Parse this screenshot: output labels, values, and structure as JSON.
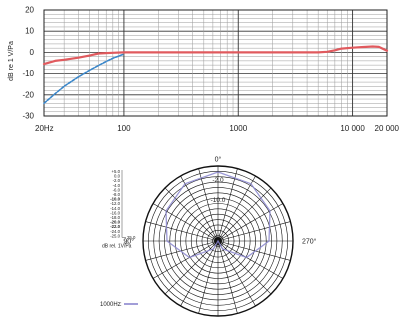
{
  "chart_data": [
    {
      "type": "line",
      "title": "",
      "xlabel": "",
      "ylabel": "dB re 1 V/Pa",
      "xscale": "log",
      "xlim": [
        20,
        20000
      ],
      "ylim": [
        -30,
        20
      ],
      "grid": true,
      "legend": "none",
      "x_ticks": [
        {
          "value": 20,
          "label": "20Hz"
        },
        {
          "value": 100,
          "label": "100"
        },
        {
          "value": 1000,
          "label": "1000"
        },
        {
          "value": 10000,
          "label": "10 000"
        },
        {
          "value": 20000,
          "label": "20 000"
        }
      ],
      "y_ticks": [
        20,
        10,
        0,
        -10,
        -20,
        -30
      ],
      "series": [
        {
          "color": "#e05a5e",
          "style": "solid",
          "x": [
            20,
            25,
            30,
            40,
            50,
            60,
            80,
            100,
            150,
            200,
            500,
            1000,
            2000,
            3000,
            4000,
            5000,
            6000,
            7000,
            8000,
            10000,
            12000,
            15000,
            17000,
            20000
          ],
          "y": [
            -5.5,
            -4,
            -3.5,
            -2.5,
            -1.5,
            -0.5,
            -0.2,
            0,
            0,
            0,
            0,
            0,
            0,
            0,
            0,
            0,
            0.3,
            1,
            1.8,
            2.2,
            2.5,
            2.8,
            2.6,
            0.8
          ]
        },
        {
          "color": "#3a86c9",
          "style": "dashed",
          "x": [
            20,
            25,
            30,
            40,
            50,
            60,
            70,
            80,
            100
          ],
          "y": [
            -24,
            -19.5,
            -16,
            -11.5,
            -8.5,
            -6.2,
            -4.3,
            -2.8,
            -0.8
          ]
        }
      ]
    },
    {
      "type": "polar",
      "angle_labels": [
        {
          "deg": 0,
          "label": "0°"
        },
        {
          "deg": 90,
          "label": "270°"
        },
        {
          "deg": 180,
          "label": "180°"
        },
        {
          "deg": 270,
          "label": "90°"
        }
      ],
      "ring_labels": [
        "-2.0",
        "-10.0"
      ],
      "scale_labels": [
        "+5.0",
        "0.0",
        "-2.0",
        "-4.0",
        "-6.0",
        "-8.0",
        "-10.0",
        "-12.0",
        "-14.0",
        "-16.0",
        "-18.0",
        "-20.0",
        "-22.0",
        "-24.0",
        "-25.0"
      ],
      "scale_end_label": "25.0",
      "scale_unit": "dB rel. 1V/Pa",
      "series": [
        {
          "name": "1000Hz",
          "color": "#8a86cf",
          "angles": [
            0,
            30,
            60,
            90,
            120,
            150,
            180,
            210,
            240,
            270,
            300,
            330,
            360
          ],
          "values": [
            -2,
            -3,
            -5,
            -8,
            -14,
            -22,
            -25,
            -22,
            -14,
            -8,
            -5,
            -3,
            -2
          ]
        }
      ]
    }
  ]
}
